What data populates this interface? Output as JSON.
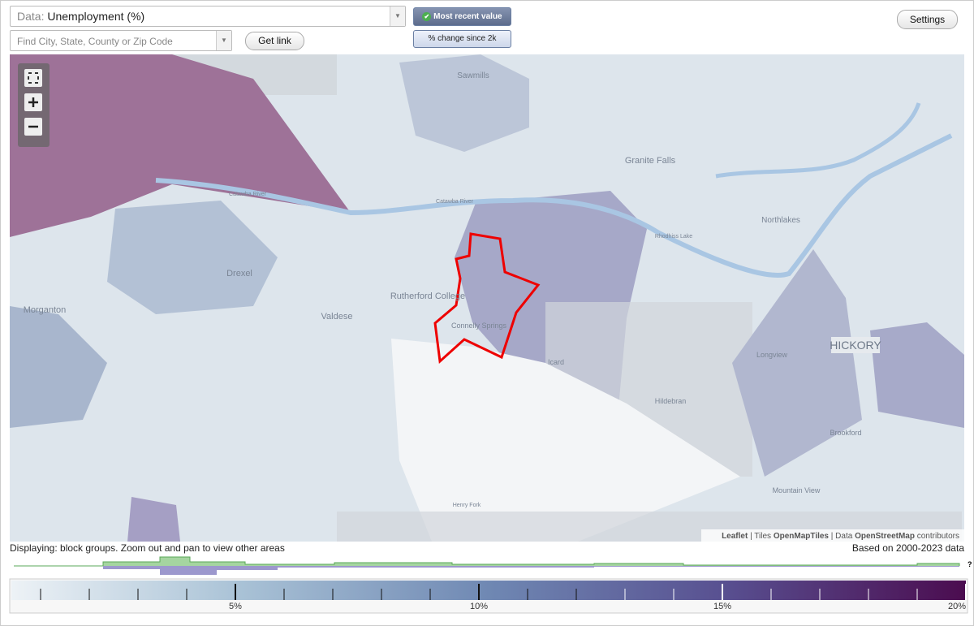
{
  "controls": {
    "data_label": "Data:",
    "data_value": "Unemployment (%)",
    "search_placeholder": "Find City, State, County or Zip Code",
    "get_link": "Get link",
    "most_recent": "Most recent value",
    "pct_change": "% change since 2k",
    "settings": "Settings"
  },
  "map": {
    "places": [
      "Sawmills",
      "Granite Falls",
      "Catawba River",
      "Catawba River",
      "Rhodhiss Lake",
      "Northlakes",
      "Drexel",
      "Morganton",
      "Rutherford College",
      "Valdese",
      "Connelly Springs",
      "Icard",
      "Longview",
      "HICKORY",
      "Hildebran",
      "Brookford",
      "Mountain View",
      "Henry Fork"
    ],
    "attribution": {
      "leaflet": "Leaflet",
      "tiles": "Tiles",
      "tiles_source": "OpenMapTiles",
      "data": "Data",
      "data_source": "OpenStreetMap",
      "contributors": "contributors"
    }
  },
  "footer": {
    "displaying": "Displaying: block groups. Zoom out and pan to view other areas",
    "based_on": "Based on 2000-2023 data",
    "unknown": "?"
  },
  "legend": {
    "range": [
      0.4,
      20
    ],
    "ticks": [
      {
        "value": 5,
        "label": "5%"
      },
      {
        "value": 10,
        "label": "10%"
      },
      {
        "value": 15,
        "label": "15%"
      },
      {
        "value": 20,
        "label": "20%"
      }
    ],
    "minor_ticks": [
      1,
      2,
      3,
      4,
      6,
      7,
      8,
      9,
      11,
      12,
      13,
      14,
      16,
      17,
      18,
      19
    ]
  }
}
